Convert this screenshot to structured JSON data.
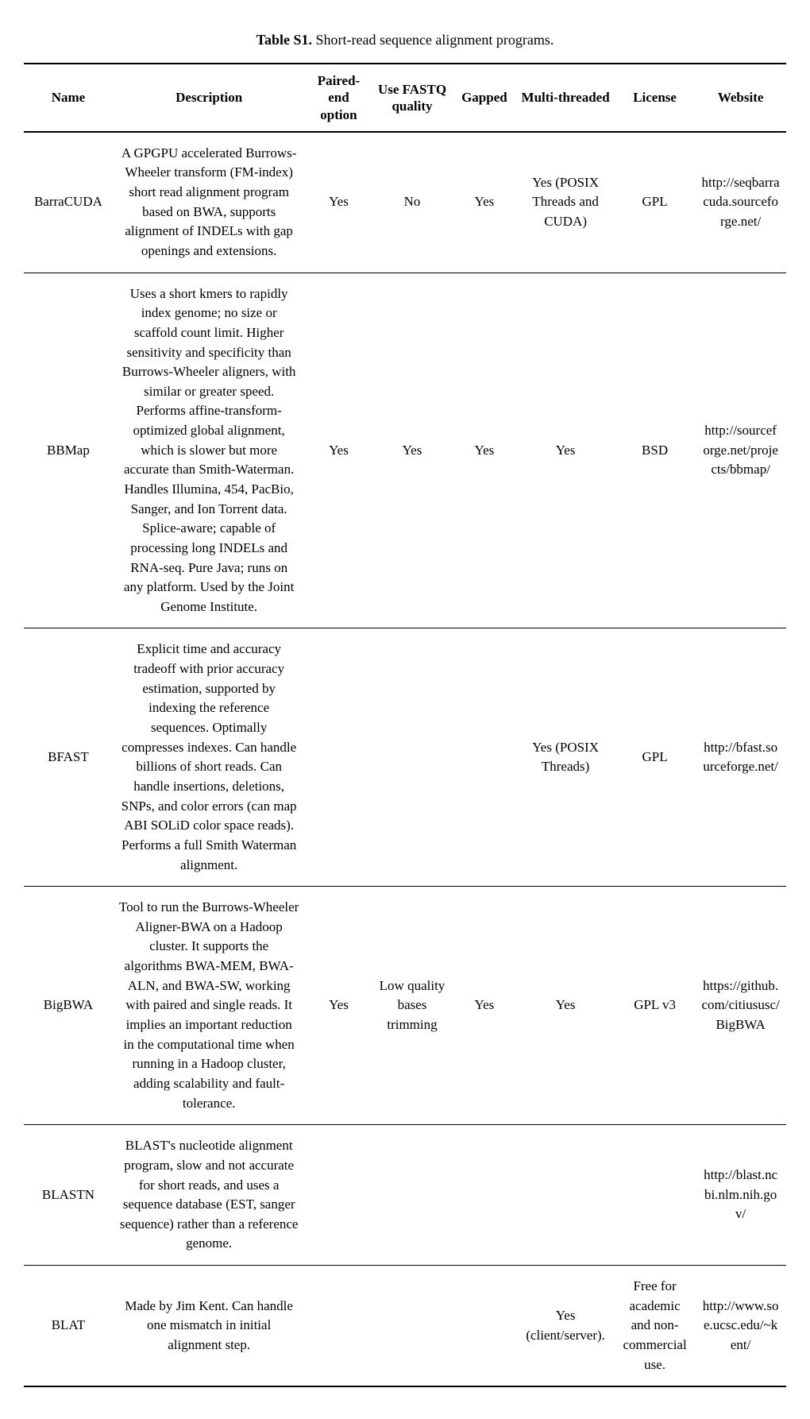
{
  "caption_bold": "Table S1.",
  "caption_rest": " Short-read sequence alignment programs.",
  "headers": {
    "name": "Name",
    "description": "Description",
    "paired": "Paired-end option",
    "fastq": "Use FASTQ quality",
    "gapped": "Gapped",
    "multi": "Multi-threaded",
    "license": "License",
    "website": "Website"
  },
  "rows": [
    {
      "name": "BarraCUDA",
      "description": "A GPGPU accelerated Burrows-Wheeler transform (FM-index) short read alignment program based on BWA, supports alignment of INDELs with gap openings and extensions.",
      "paired": "Yes",
      "fastq": "No",
      "gapped": "Yes",
      "multi": "Yes (POSIX Threads and CUDA)",
      "license": "GPL",
      "website": "http://seqbarracuda.sourceforge.net/"
    },
    {
      "name": "BBMap",
      "description": "Uses a short kmers to rapidly index genome; no size or scaffold count limit. Higher sensitivity and specificity than Burrows-Wheeler aligners, with similar or greater speed. Performs affine-transform-optimized global alignment, which is slower but more accurate than Smith-Waterman. Handles Illumina, 454, PacBio, Sanger, and Ion Torrent data. Splice-aware; capable of processing long INDELs and RNA-seq. Pure Java; runs on any platform. Used by the Joint Genome Institute.",
      "paired": "Yes",
      "fastq": "Yes",
      "gapped": "Yes",
      "multi": "Yes",
      "license": "BSD",
      "website": "http://sourceforge.net/projects/bbmap/"
    },
    {
      "name": "BFAST",
      "description": "Explicit time and accuracy tradeoff with prior accuracy estimation, supported by indexing the reference sequences. Optimally compresses indexes. Can handle billions of short reads. Can handle insertions, deletions, SNPs, and color errors (can map ABI SOLiD color space reads). Performs a full Smith Waterman alignment.",
      "paired": "",
      "fastq": "",
      "gapped": "",
      "multi": "Yes (POSIX Threads)",
      "license": "GPL",
      "website": "http://bfast.sourceforge.net/"
    },
    {
      "name": "BigBWA",
      "description": "Tool to run the Burrows-Wheeler Aligner-BWA on a Hadoop cluster. It supports the algorithms BWA-MEM, BWA-ALN, and BWA-SW, working with paired and single reads. It implies an important reduction in the computational time when running in a Hadoop cluster, adding scalability and fault-tolerance.",
      "paired": "Yes",
      "fastq": "Low quality bases trimming",
      "gapped": "Yes",
      "multi": "Yes",
      "license": "GPL v3",
      "website": "https://github.com/citiususc/BigBWA"
    },
    {
      "name": "BLASTN",
      "description": "BLAST's nucleotide alignment program, slow and not accurate for short reads, and uses a sequence database (EST, sanger sequence) rather than a reference genome.",
      "paired": "",
      "fastq": "",
      "gapped": "",
      "multi": "",
      "license": "",
      "website": "http://blast.ncbi.nlm.nih.gov/"
    },
    {
      "name": "BLAT",
      "description": "Made by Jim Kent. Can handle one mismatch in initial alignment step.",
      "paired": "",
      "fastq": "",
      "gapped": "",
      "multi": "Yes (client/server).",
      "license": "Free for academic and non-commercial use.",
      "website": "http://www.soe.ucsc.edu/~kent/"
    }
  ]
}
